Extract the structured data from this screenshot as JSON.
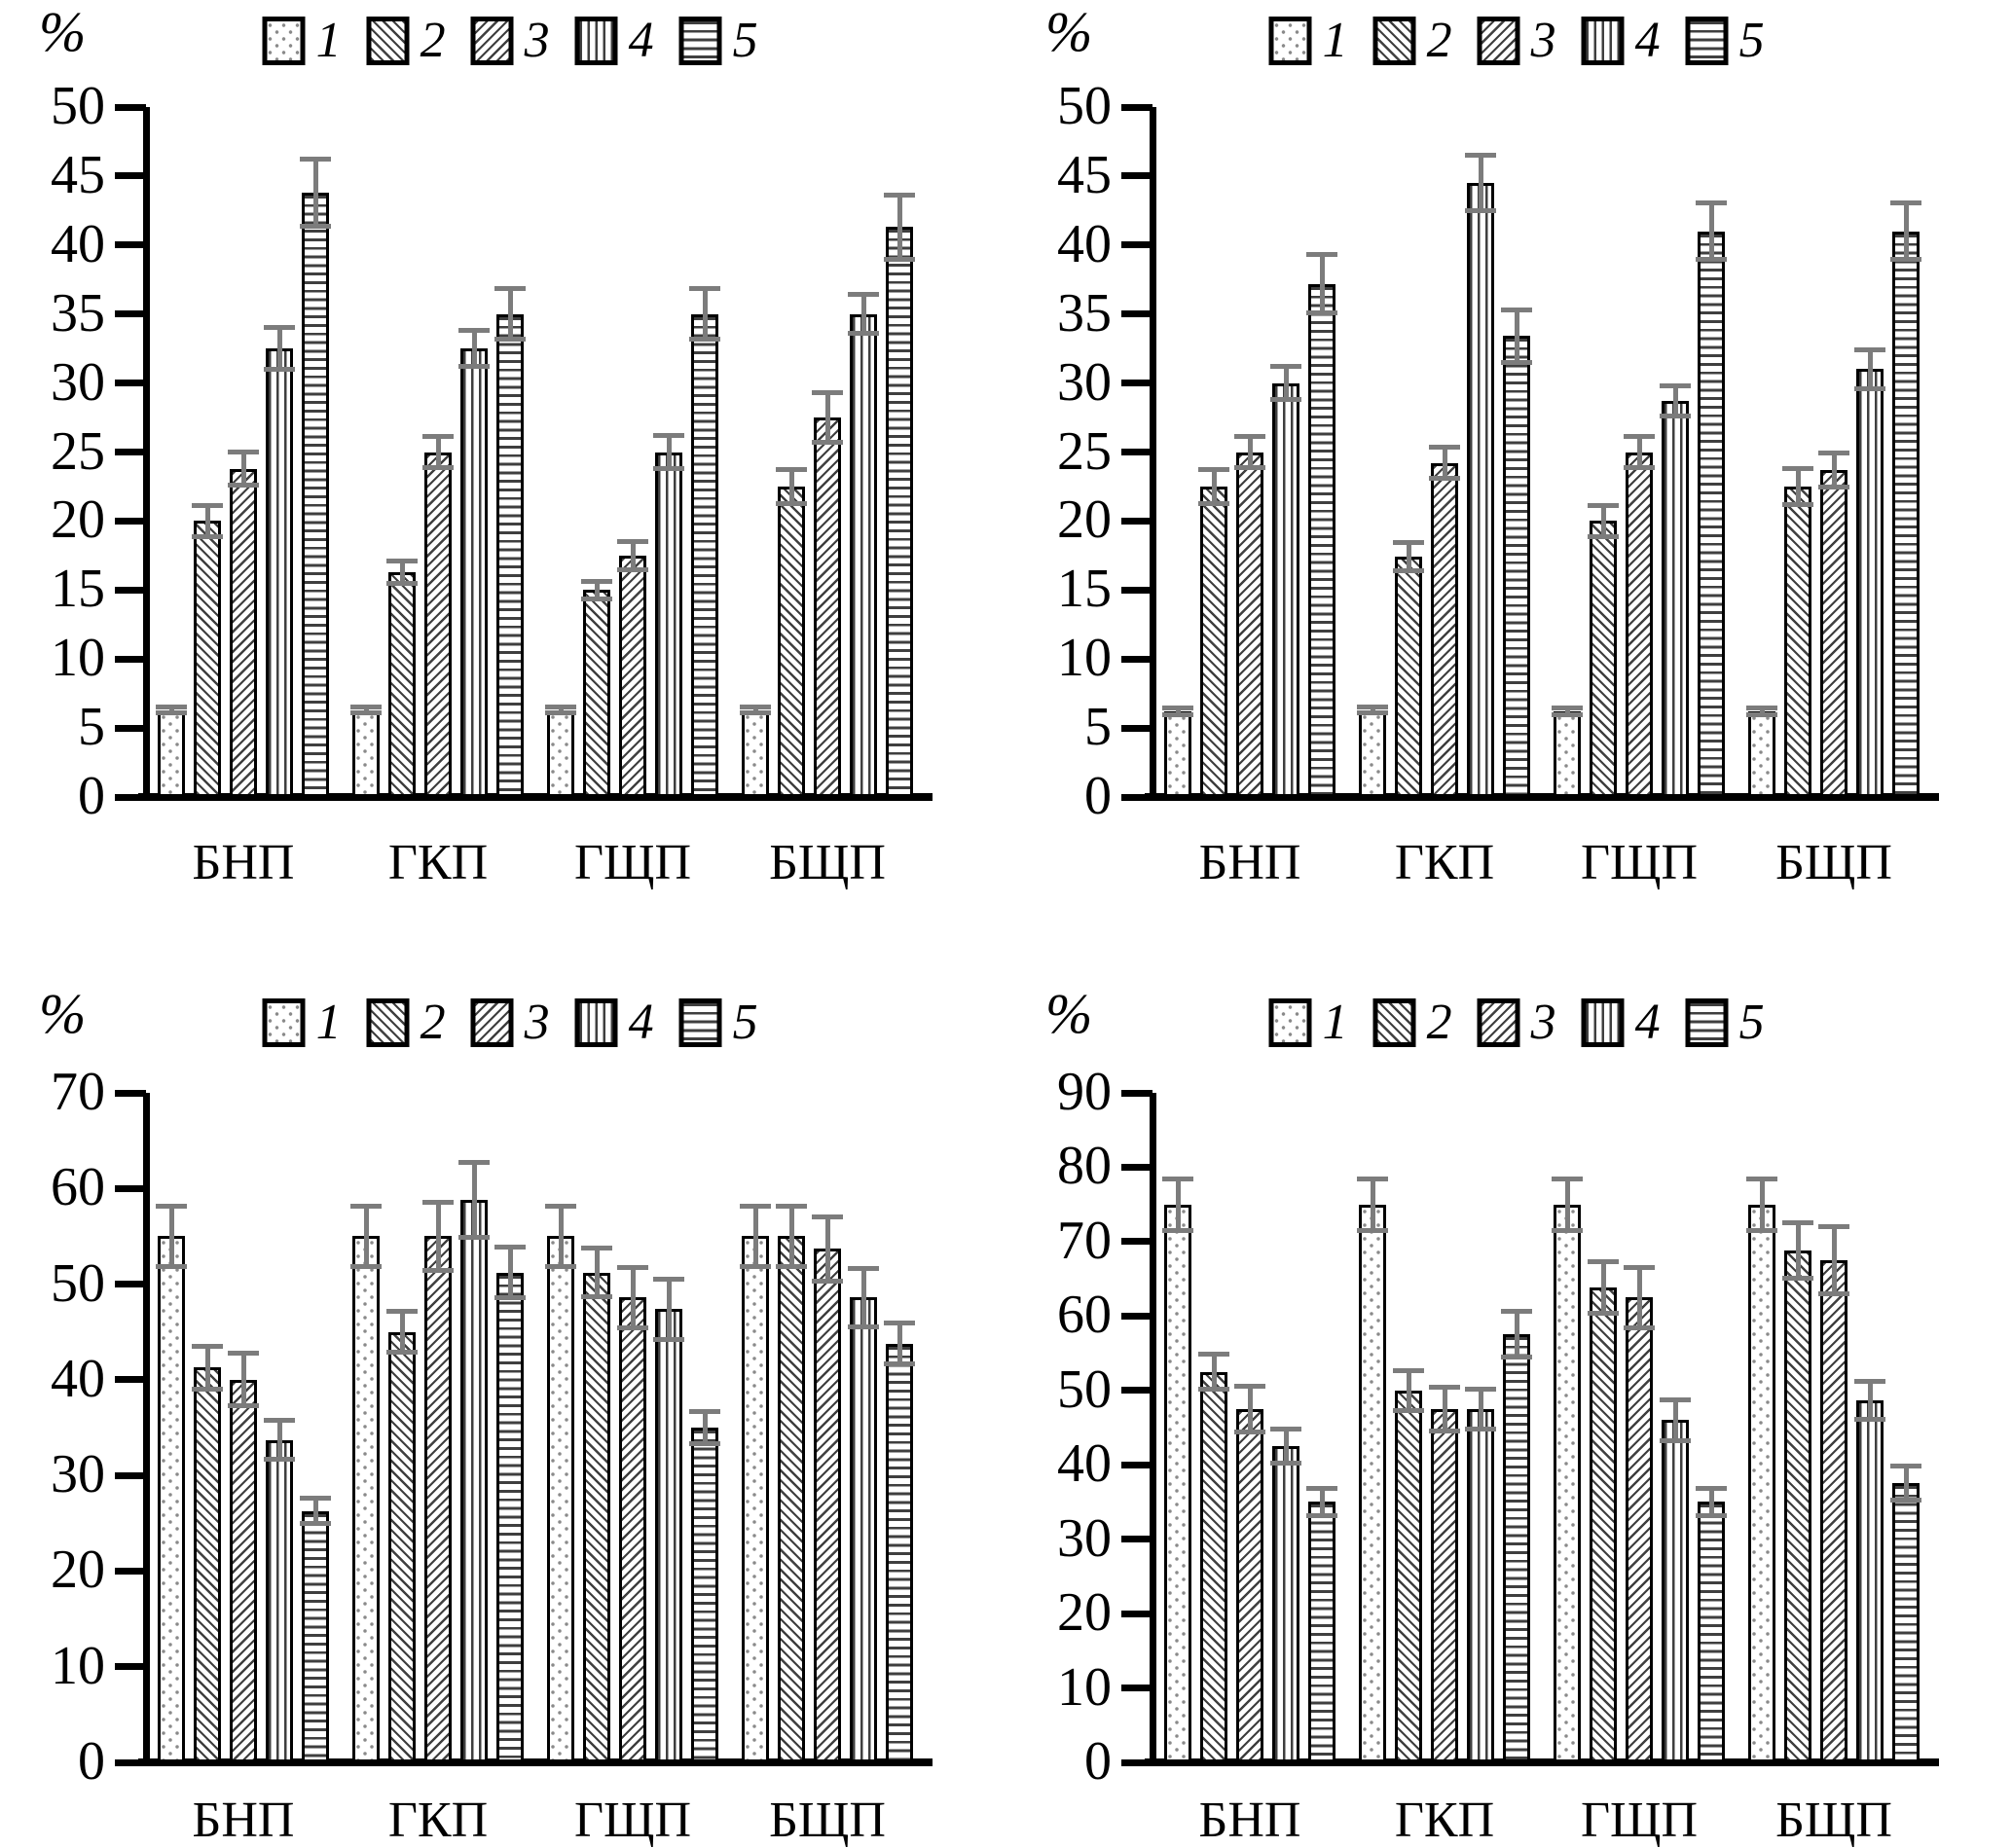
{
  "figure": {
    "background": "#ffffff",
    "unit_label": "%",
    "categories": [
      "БНП",
      "ГКП",
      "ГЩП",
      "БЩП"
    ],
    "legend_items": [
      "1",
      "2",
      "3",
      "4",
      "5"
    ],
    "legend_position": "top-center"
  },
  "colors": {
    "bar_outline": "#000000",
    "pattern_ink": "#3f3f3f",
    "dot_ink": "#8a8a8a",
    "error_bar": "#7c7c7c",
    "axis": "#000000",
    "text": "#000000"
  },
  "patterns": [
    "dots",
    "diag-back",
    "diag-fwd",
    "vertical",
    "horizontal"
  ],
  "chart_data": [
    {
      "id": "top-left",
      "type": "bar",
      "title": "",
      "xlabel": "",
      "ylabel": "%",
      "ylim": [
        0,
        50
      ],
      "ytick_step": 5,
      "yticks": [
        0,
        5,
        10,
        15,
        20,
        25,
        30,
        35,
        40,
        45,
        50
      ],
      "grid": false,
      "legend": [
        "1",
        "2",
        "3",
        "4",
        "5"
      ],
      "categories": [
        "БНП",
        "ГКП",
        "ГЩП",
        "БЩП"
      ],
      "series": [
        {
          "name": "1",
          "pattern": "dots",
          "values": [
            6.3,
            6.3,
            6.3,
            6.3
          ],
          "errors": [
            0.4,
            0.4,
            0.4,
            0.4
          ]
        },
        {
          "name": "2",
          "pattern": "diag-back",
          "values": [
            20.0,
            16.3,
            15.0,
            22.5
          ],
          "errors": [
            1.3,
            1.0,
            0.8,
            1.4
          ]
        },
        {
          "name": "3",
          "pattern": "diag-fwd",
          "values": [
            23.8,
            25.0,
            17.5,
            27.5
          ],
          "errors": [
            1.4,
            1.3,
            1.2,
            2.0
          ]
        },
        {
          "name": "4",
          "pattern": "vertical",
          "values": [
            32.5,
            32.5,
            25.0,
            35.0
          ],
          "errors": [
            1.7,
            1.5,
            1.4,
            1.6
          ]
        },
        {
          "name": "5",
          "pattern": "horizontal",
          "values": [
            43.8,
            35.0,
            35.0,
            41.3
          ],
          "errors": [
            2.6,
            2.0,
            2.0,
            2.5
          ]
        }
      ]
    },
    {
      "id": "top-right",
      "type": "bar",
      "title": "",
      "xlabel": "",
      "ylabel": "%",
      "ylim": [
        0,
        50
      ],
      "ytick_step": 5,
      "yticks": [
        0,
        5,
        10,
        15,
        20,
        25,
        30,
        35,
        40,
        45,
        50
      ],
      "grid": false,
      "legend": [
        "1",
        "2",
        "3",
        "4",
        "5"
      ],
      "categories": [
        "БНП",
        "ГКП",
        "ГЩП",
        "БЩП"
      ],
      "series": [
        {
          "name": "1",
          "pattern": "dots",
          "values": [
            6.2,
            6.3,
            6.2,
            6.2
          ],
          "errors": [
            0.4,
            0.4,
            0.4,
            0.4
          ]
        },
        {
          "name": "2",
          "pattern": "diag-back",
          "values": [
            22.5,
            17.4,
            20.0,
            22.5
          ],
          "errors": [
            1.4,
            1.2,
            1.3,
            1.5
          ]
        },
        {
          "name": "3",
          "pattern": "diag-fwd",
          "values": [
            25.0,
            24.2,
            25.0,
            23.7
          ],
          "errors": [
            1.3,
            1.3,
            1.3,
            1.4
          ]
        },
        {
          "name": "4",
          "pattern": "vertical",
          "values": [
            30.0,
            44.5,
            28.7,
            31.0
          ],
          "errors": [
            1.4,
            2.2,
            1.3,
            1.6
          ]
        },
        {
          "name": "5",
          "pattern": "horizontal",
          "values": [
            37.2,
            33.4,
            41.0,
            41.0
          ],
          "errors": [
            2.3,
            2.1,
            2.2,
            2.2
          ]
        }
      ]
    },
    {
      "id": "bottom-left",
      "type": "bar",
      "title": "",
      "xlabel": "",
      "ylabel": "%",
      "ylim": [
        0,
        70
      ],
      "ytick_step": 10,
      "yticks": [
        0,
        10,
        20,
        30,
        40,
        50,
        60,
        70
      ],
      "grid": false,
      "legend": [
        "1",
        "2",
        "3",
        "4",
        "5"
      ],
      "categories": [
        "БНП",
        "ГКП",
        "ГЩП",
        "БЩП"
      ],
      "series": [
        {
          "name": "1",
          "pattern": "dots",
          "values": [
            55.0,
            55.0,
            55.0,
            55.0
          ],
          "errors": [
            3.4,
            3.4,
            3.4,
            3.4
          ]
        },
        {
          "name": "2",
          "pattern": "diag-back",
          "values": [
            41.3,
            45.0,
            51.2,
            55.0
          ],
          "errors": [
            2.5,
            2.4,
            2.8,
            3.4
          ]
        },
        {
          "name": "3",
          "pattern": "diag-fwd",
          "values": [
            40.0,
            55.0,
            48.6,
            53.7
          ],
          "errors": [
            3.0,
            3.8,
            3.4,
            3.6
          ]
        },
        {
          "name": "4",
          "pattern": "vertical",
          "values": [
            33.7,
            58.8,
            47.4,
            48.6
          ],
          "errors": [
            2.3,
            4.2,
            3.4,
            3.3
          ]
        },
        {
          "name": "5",
          "pattern": "horizontal",
          "values": [
            26.3,
            51.2,
            35.0,
            43.8
          ],
          "errors": [
            1.6,
            2.9,
            1.9,
            2.4
          ]
        }
      ]
    },
    {
      "id": "bottom-right",
      "type": "bar",
      "title": "",
      "xlabel": "",
      "ylabel": "%",
      "ylim": [
        0,
        90
      ],
      "ytick_step": 10,
      "yticks": [
        0,
        10,
        20,
        30,
        40,
        50,
        60,
        70,
        80,
        90
      ],
      "grid": false,
      "legend": [
        "1",
        "2",
        "3",
        "4",
        "5"
      ],
      "categories": [
        "БНП",
        "ГКП",
        "ГЩП",
        "БЩП"
      ],
      "series": [
        {
          "name": "1",
          "pattern": "dots",
          "values": [
            75.0,
            75.0,
            75.0,
            75.0
          ],
          "errors": [
            3.8,
            3.8,
            3.8,
            3.8
          ]
        },
        {
          "name": "2",
          "pattern": "diag-back",
          "values": [
            52.5,
            50.0,
            63.8,
            68.8
          ],
          "errors": [
            2.7,
            3.0,
            3.8,
            4.1
          ]
        },
        {
          "name": "3",
          "pattern": "diag-fwd",
          "values": [
            47.5,
            47.5,
            62.5,
            67.5
          ],
          "errors": [
            3.4,
            3.3,
            4.4,
            4.8
          ]
        },
        {
          "name": "4",
          "pattern": "vertical",
          "values": [
            42.5,
            47.5,
            46.0,
            48.7
          ],
          "errors": [
            2.6,
            3.0,
            3.1,
            2.9
          ]
        },
        {
          "name": "5",
          "pattern": "horizontal",
          "values": [
            35.0,
            57.5,
            35.0,
            37.5
          ],
          "errors": [
            2.1,
            3.4,
            2.1,
            2.6
          ]
        }
      ]
    }
  ]
}
